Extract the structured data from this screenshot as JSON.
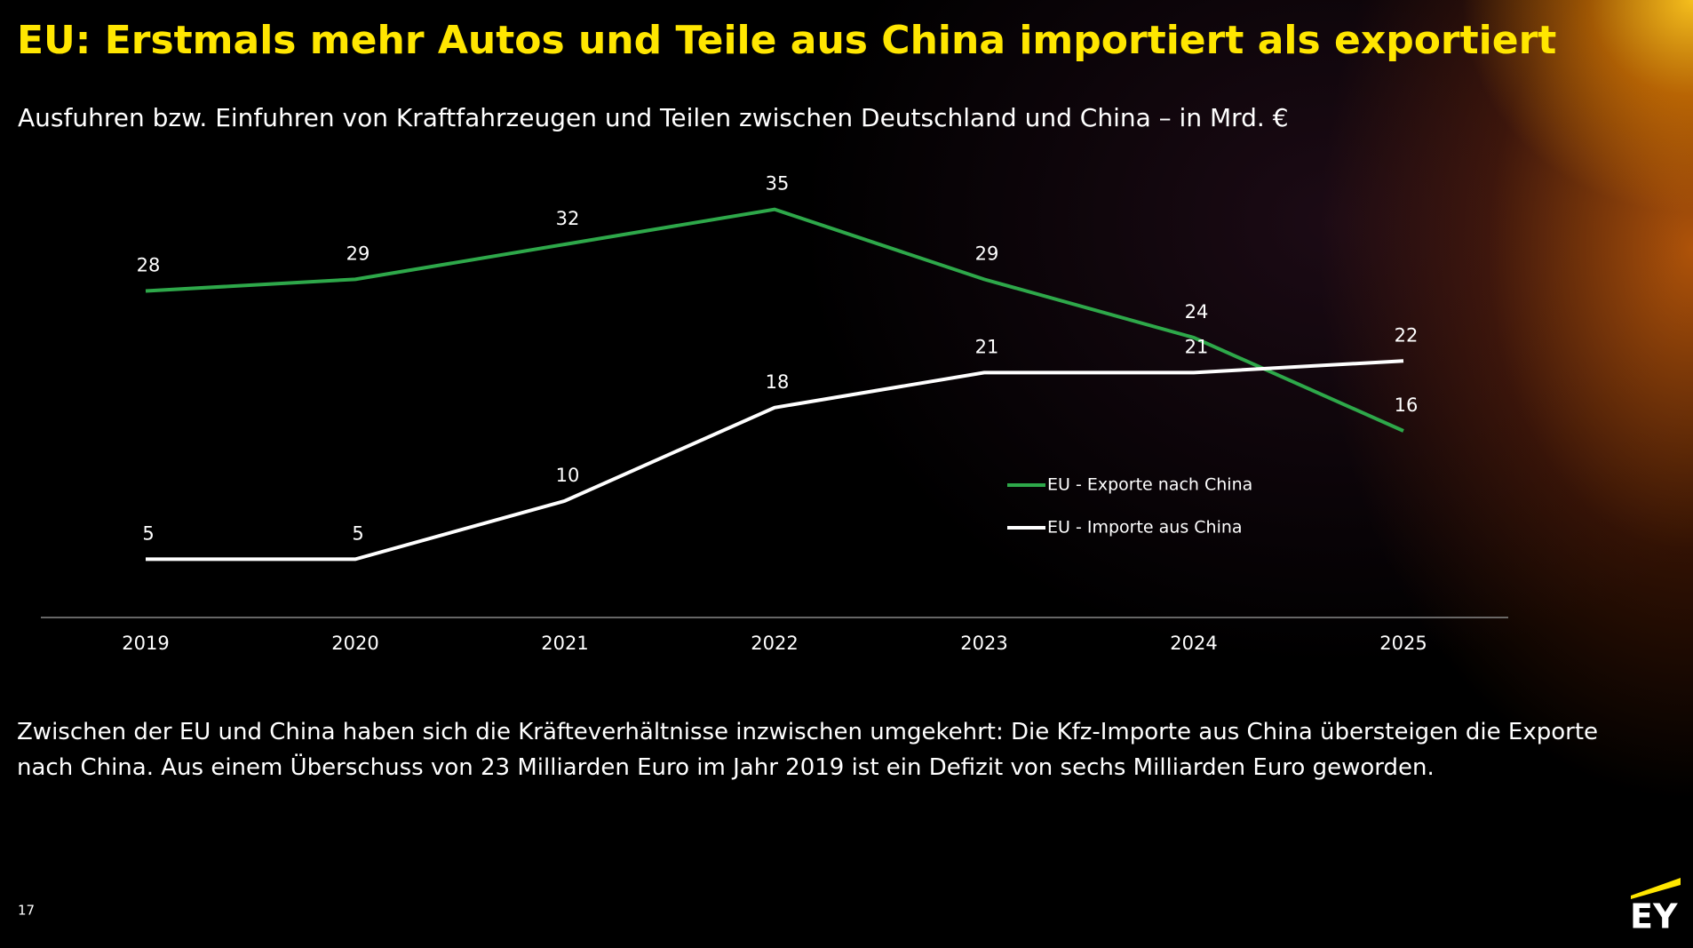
{
  "chart_data": {
    "type": "line",
    "title": "EU: Erstmals mehr Autos und Teile aus China importiert als exportiert",
    "subtitle": "Ausfuhren bzw. Einfuhren von Kraftfahrzeugen und Teilen zwischen Deutschland und China – in Mrd. €",
    "categories": [
      "2019",
      "2020",
      "2021",
      "2022",
      "2023",
      "2024",
      "2025"
    ],
    "series": [
      {
        "name": "EU - Exporte nach China",
        "color": "#2ea84a",
        "values": [
          28,
          29,
          32,
          35,
          29,
          24,
          16
        ]
      },
      {
        "name": "EU - Importe aus China",
        "color": "#ffffff",
        "values": [
          5,
          5,
          10,
          18,
          21,
          21,
          22
        ]
      }
    ],
    "ylim": [
      0,
      40
    ],
    "grid": false,
    "legend": "center-right"
  },
  "body": "Zwischen der EU und China haben sich die Kräfteverhältnisse inzwischen umgekehrt: Die Kfz-Importe aus China übersteigen die Exporte nach China. Aus einem Überschuss von 23 Milliarden Euro im Jahr 2019 ist ein Defizit von sechs Milliarden Euro geworden.",
  "page_number": "17",
  "logo": "EY"
}
